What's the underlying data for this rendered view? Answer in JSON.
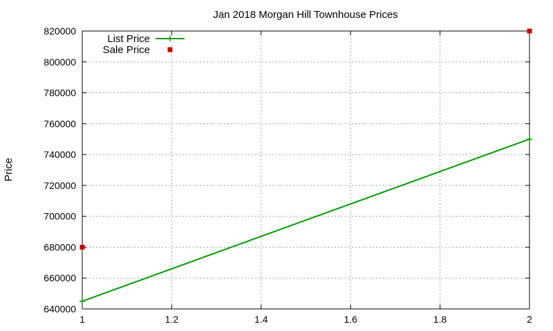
{
  "chart_data": {
    "type": "line",
    "title": "Jan 2018 Morgan Hill Townhouse Prices",
    "xlabel": "",
    "ylabel": "Price",
    "xlim": [
      1,
      2
    ],
    "ylim": [
      640000,
      820000
    ],
    "x_ticks": [
      "1",
      "1.2",
      "1.4",
      "1.6",
      "1.8",
      "2"
    ],
    "x_tick_values": [
      1,
      1.2,
      1.4,
      1.6,
      1.8,
      2
    ],
    "y_ticks": [
      "640000",
      "660000",
      "680000",
      "700000",
      "720000",
      "740000",
      "760000",
      "780000",
      "800000",
      "820000"
    ],
    "y_tick_values": [
      640000,
      660000,
      680000,
      700000,
      720000,
      740000,
      760000,
      780000,
      800000,
      820000
    ],
    "grid": true,
    "legend_position": "top-left",
    "series": [
      {
        "name": "List Price",
        "style": "linespoints",
        "color": "#009900",
        "x": [
          1,
          2
        ],
        "y": [
          645000,
          750000
        ]
      },
      {
        "name": "Sale Price",
        "style": "points",
        "color": "#cc0000",
        "x": [
          1,
          2
        ],
        "y": [
          680000,
          820000
        ]
      }
    ]
  }
}
